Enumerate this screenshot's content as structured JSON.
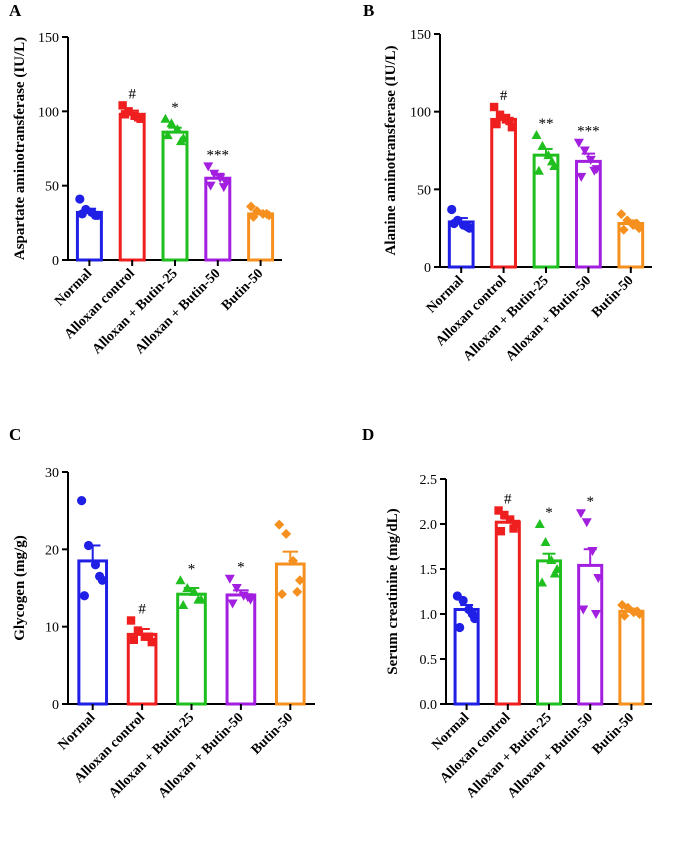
{
  "chart_data": [
    {
      "panel": "A",
      "type": "bar",
      "ylabel": "Aspartate aminotransferase (IU/L)",
      "ylim": [
        0,
        150
      ],
      "yticks": [
        0,
        50,
        100,
        150
      ],
      "categories": [
        "Normal",
        "Alloxan control",
        "Alloxan + Butin-25",
        "Alloxan + Butin-50",
        "Butin-50"
      ],
      "colors": [
        "#1f1fe6",
        "#f01f1f",
        "#1fbf1f",
        "#a31fe0",
        "#f5901f"
      ],
      "markers": [
        "circle",
        "square",
        "triangle-up",
        "triangle-down",
        "diamond"
      ],
      "values": [
        32,
        98,
        86,
        55,
        31
      ],
      "errors": [
        2.5,
        2.5,
        3,
        3,
        1.5
      ],
      "points": [
        [
          41,
          34,
          32,
          30,
          31,
          30
        ],
        [
          104,
          100,
          97,
          95,
          98,
          96
        ],
        [
          95,
          92,
          88,
          82,
          84,
          80
        ],
        [
          63,
          58,
          55,
          52,
          50,
          49
        ],
        [
          36,
          33,
          31,
          30,
          29,
          31
        ]
      ],
      "annotations": [
        "",
        "#",
        "*",
        "***",
        ""
      ]
    },
    {
      "panel": "B",
      "type": "bar",
      "ylabel": "Alanine aminotransferase (IU/L)",
      "ylim": [
        0,
        150
      ],
      "yticks": [
        0,
        50,
        100,
        150
      ],
      "categories": [
        "Normal",
        "Alloxan control",
        "Alloxan + Butin-25",
        "Alloxan + Butin-50",
        "Butin-50"
      ],
      "colors": [
        "#1f1fe6",
        "#f01f1f",
        "#1fbf1f",
        "#a31fe0",
        "#f5901f"
      ],
      "markers": [
        "circle",
        "square",
        "triangle-up",
        "triangle-down",
        "diamond"
      ],
      "values": [
        29,
        95,
        72,
        68,
        28
      ],
      "errors": [
        2.5,
        3,
        4,
        5,
        2
      ],
      "points": [
        [
          37,
          30,
          27,
          25,
          28,
          26
        ],
        [
          103,
          98,
          95,
          90,
          92,
          94
        ],
        [
          85,
          78,
          72,
          65,
          62,
          68
        ],
        [
          80,
          75,
          69,
          63,
          58,
          62
        ],
        [
          34,
          30,
          27,
          25,
          24,
          28
        ]
      ],
      "annotations": [
        "",
        "#",
        "**",
        "***",
        ""
      ]
    },
    {
      "panel": "C",
      "type": "bar",
      "ylabel": "Glycogen (mg/g)",
      "ylim": [
        0,
        30
      ],
      "yticks": [
        0,
        10,
        20,
        30
      ],
      "categories": [
        "Normal",
        "Alloxan control",
        "Alloxan + Butin-25",
        "Alloxan + Butin-50",
        "Butin-50"
      ],
      "colors": [
        "#1f1fe6",
        "#f01f1f",
        "#1fbf1f",
        "#a31fe0",
        "#f5901f"
      ],
      "markers": [
        "circle",
        "square",
        "triangle-up",
        "triangle-down",
        "diamond"
      ],
      "values": [
        18.5,
        9.0,
        14.2,
        14.1,
        18.1
      ],
      "errors": [
        2.0,
        0.7,
        0.8,
        0.6,
        1.6
      ],
      "points": [
        [
          26.3,
          20.5,
          18.0,
          16.0,
          14.0,
          16.5
        ],
        [
          10.8,
          9.5,
          8.7,
          8.0,
          8.3,
          8.7
        ],
        [
          16.0,
          15.0,
          14.5,
          13.5,
          12.8,
          13.5
        ],
        [
          16.2,
          15.0,
          14.0,
          13.5,
          13.0,
          13.8
        ],
        [
          23.2,
          22.0,
          18.5,
          16.0,
          14.2,
          14.5
        ]
      ],
      "annotations": [
        "",
        "#",
        "*",
        "*",
        ""
      ]
    },
    {
      "panel": "D",
      "type": "bar",
      "ylabel": "Serum creatinine (mg/dL)",
      "ylim": [
        0,
        2.5
      ],
      "yticks": [
        0.0,
        0.5,
        1.0,
        1.5,
        2.0,
        2.5
      ],
      "tick_decimals": 1,
      "categories": [
        "Normal",
        "Alloxan control",
        "Alloxan + Butin-25",
        "Alloxan + Butin-50",
        "Butin-50"
      ],
      "colors": [
        "#1f1fe6",
        "#f01f1f",
        "#1fbf1f",
        "#a31fe0",
        "#f5901f"
      ],
      "markers": [
        "circle",
        "square",
        "triangle-up",
        "triangle-down",
        "diamond"
      ],
      "values": [
        1.05,
        2.02,
        1.59,
        1.54,
        1.03
      ],
      "errors": [
        0.05,
        0.04,
        0.08,
        0.18,
        0.03
      ],
      "points": [
        [
          1.2,
          1.15,
          1.05,
          0.95,
          0.85,
          1.0
        ],
        [
          2.15,
          2.1,
          2.05,
          2.0,
          1.92,
          1.95
        ],
        [
          2.0,
          1.8,
          1.6,
          1.5,
          1.35,
          1.45
        ],
        [
          2.12,
          2.02,
          1.7,
          1.4,
          1.05,
          1.0
        ],
        [
          1.1,
          1.07,
          1.02,
          1.0,
          0.98,
          1.03
        ]
      ],
      "annotations": [
        "",
        "#",
        "*",
        "*",
        ""
      ]
    }
  ]
}
